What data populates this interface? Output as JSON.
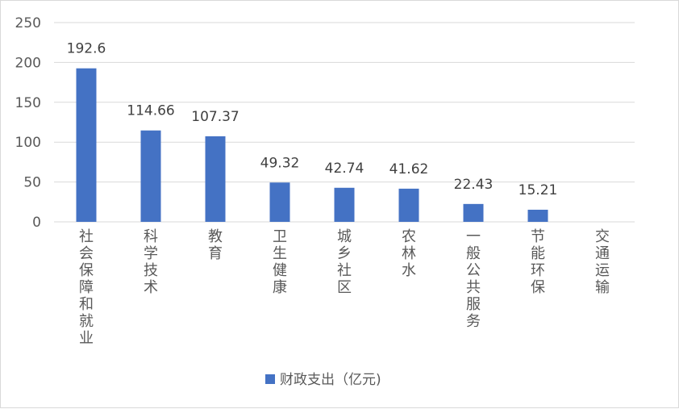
{
  "chart_data": {
    "type": "bar",
    "categories": [
      "社会保障和就业",
      "科学技术",
      "教育",
      "卫生健康",
      "城乡社区",
      "农林水",
      "一般公共服务",
      "节能环保",
      "交通运输"
    ],
    "series": [
      {
        "name": "财政支出（亿元)",
        "values": [
          192.6,
          114.66,
          107.37,
          49.32,
          42.74,
          41.62,
          22.43,
          15.21,
          null
        ],
        "labels": [
          "192.6",
          "114.66",
          "107.37",
          "49.32",
          "42.74",
          "41.62",
          "22.43",
          "15.21",
          ""
        ],
        "color": "#4472c4"
      }
    ],
    "ylim": [
      0,
      250
    ],
    "yticks": [
      0,
      50,
      100,
      150,
      200,
      250
    ],
    "grid": true,
    "legend_position": "bottom",
    "category_label_orientation": "vertical"
  }
}
